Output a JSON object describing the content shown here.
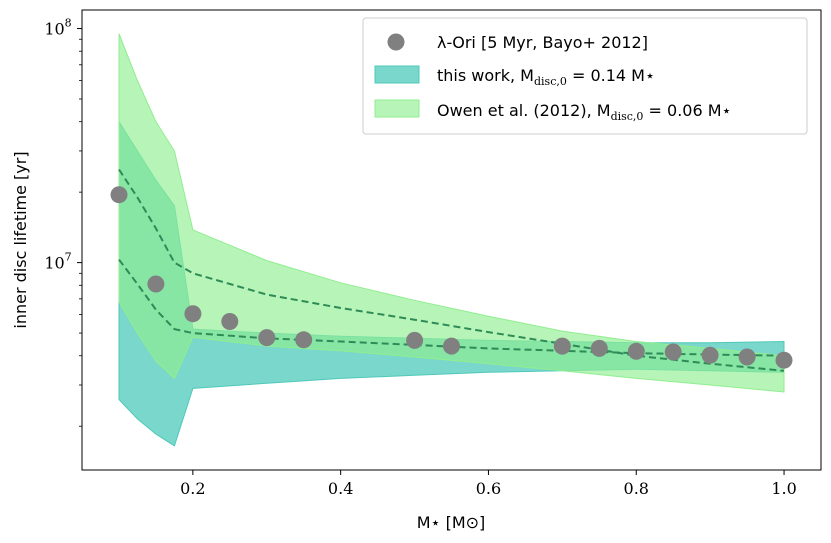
{
  "chart_data": {
    "type": "scatter",
    "xlabel": "M⋆ [M⊙]",
    "ylabel": "inner disc lifetime [yr]",
    "xlim": [
      0.05,
      1.05
    ],
    "ylim": [
      1300000,
      120000000
    ],
    "yscale": "log",
    "x_ticks": [
      0.2,
      0.4,
      0.6,
      0.8,
      1.0
    ],
    "x_tick_labels": [
      "0.2",
      "0.4",
      "0.6",
      "0.8",
      "1.0"
    ],
    "y_ticks": [
      10000000,
      100000000
    ],
    "y_tick_labels": [
      {
        "base": "10",
        "exp": "7"
      },
      {
        "base": "10",
        "exp": "8"
      }
    ],
    "legend": {
      "placement": "top-right",
      "entries": [
        {
          "key": "observed",
          "label": "λ-Ori [5 Myr, Bayo+ 2012]"
        },
        {
          "key": "this_work",
          "label_pre": "this work, M",
          "label_sub": "disc,0",
          "label_post": " = 0.14 M⋆"
        },
        {
          "key": "owen",
          "label_pre": "Owen et al. (2012), M",
          "label_sub": "disc,0",
          "label_post": " = 0.06 M⋆"
        }
      ]
    },
    "colors": {
      "observed": "#808080",
      "this_work": "#4ec9b9",
      "owen": "#90ee90",
      "dashed": "#2e8b57"
    },
    "series": [
      {
        "name": "λ-Ori [5 Myr, Bayo+ 2012]",
        "kind": "points",
        "x": [
          0.1,
          0.15,
          0.2,
          0.25,
          0.3,
          0.35,
          0.5,
          0.55,
          0.7,
          0.75,
          0.8,
          0.85,
          0.9,
          0.95,
          1.0
        ],
        "y": [
          19500000,
          8100000,
          6050000,
          5600000,
          4780000,
          4680000,
          4650000,
          4400000,
          4400000,
          4300000,
          4180000,
          4150000,
          4020000,
          3950000,
          3830000
        ]
      },
      {
        "name": "this work",
        "kind": "band",
        "x": [
          0.1,
          0.125,
          0.15,
          0.175,
          0.2,
          0.3,
          0.4,
          0.5,
          0.6,
          0.7,
          0.8,
          0.9,
          1.0
        ],
        "lower": [
          2600000,
          2150000,
          1850000,
          1650000,
          2900000,
          3050000,
          3200000,
          3300000,
          3400000,
          3450000,
          3500000,
          3450000,
          3400000
        ],
        "upper": [
          40000000,
          30000000,
          22500000,
          17500000,
          5200000,
          5000000,
          4850000,
          4750000,
          4650000,
          4600000,
          4550000,
          4550000,
          4600000
        ]
      },
      {
        "name": "Owen et al. (2012)",
        "kind": "band",
        "x": [
          0.1,
          0.125,
          0.15,
          0.175,
          0.2,
          0.3,
          0.4,
          0.5,
          0.6,
          0.7,
          0.8,
          0.9,
          1.0
        ],
        "lower": [
          6800000,
          5000000,
          3800000,
          3200000,
          4800000,
          4400000,
          4200000,
          3950000,
          3700000,
          3450000,
          3200000,
          3000000,
          2800000
        ],
        "upper": [
          95000000,
          60000000,
          40000000,
          30000000,
          13800000,
          10200000,
          8200000,
          6900000,
          5900000,
          5100000,
          4600000,
          4300000,
          4000000
        ]
      },
      {
        "name": "this work median",
        "kind": "dashed",
        "x": [
          0.1,
          0.125,
          0.15,
          0.175,
          0.2,
          0.3,
          0.4,
          0.5,
          0.6,
          0.7,
          0.8,
          0.9,
          1.0
        ],
        "y": [
          10300000,
          8100000,
          6300000,
          5200000,
          5000000,
          4750000,
          4600000,
          4450000,
          4300000,
          4200000,
          4100000,
          4050000,
          4000000
        ]
      },
      {
        "name": "Owen median",
        "kind": "dashed",
        "x": [
          0.1,
          0.125,
          0.15,
          0.175,
          0.2,
          0.3,
          0.4,
          0.5,
          0.6,
          0.7,
          0.8,
          0.9,
          1.0
        ],
        "y": [
          25000000,
          19000000,
          14000000,
          10000000,
          9000000,
          7300000,
          6400000,
          5700000,
          5050000,
          4500000,
          4000000,
          3700000,
          3450000
        ]
      }
    ]
  }
}
